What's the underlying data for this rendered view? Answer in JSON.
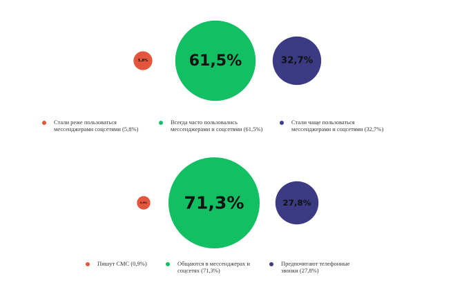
{
  "chart_data": [
    {
      "type": "bubble",
      "series": [
        {
          "name": "Стали реже пользоваться мессенджерами соцсетями (5,8%)",
          "color": "#e4553e",
          "values": [
            5.8
          ],
          "value_labels": [
            "5,8%"
          ]
        },
        {
          "name": "Всегда часто пользовались мессенджерами и соцсетями (61,5%)",
          "color": "#12bf62",
          "values": [
            61.5
          ],
          "value_labels": [
            "61,5%"
          ]
        },
        {
          "name": "Стали чаще пользоваться мессенджерами и соцсетями (32,7%)",
          "color": "#3b3a82",
          "values": [
            32.7
          ],
          "value_labels": [
            "32,7%"
          ]
        }
      ]
    },
    {
      "type": "bubble",
      "series": [
        {
          "name": "Пишут СМС (0,9%)",
          "color": "#e4553e",
          "values": [
            0.9
          ],
          "value_labels": [
            "0,9%"
          ]
        },
        {
          "name": "Общаются в мессенджерах и соцсетях (71,3%)",
          "color": "#12bf62",
          "values": [
            71.3
          ],
          "value_labels": [
            "71,3%"
          ]
        },
        {
          "name": "Предпочитают телефонные звонки (27,8%)",
          "color": "#3b3a82",
          "values": [
            27.8
          ],
          "value_labels": [
            "27,8%"
          ]
        }
      ]
    }
  ]
}
